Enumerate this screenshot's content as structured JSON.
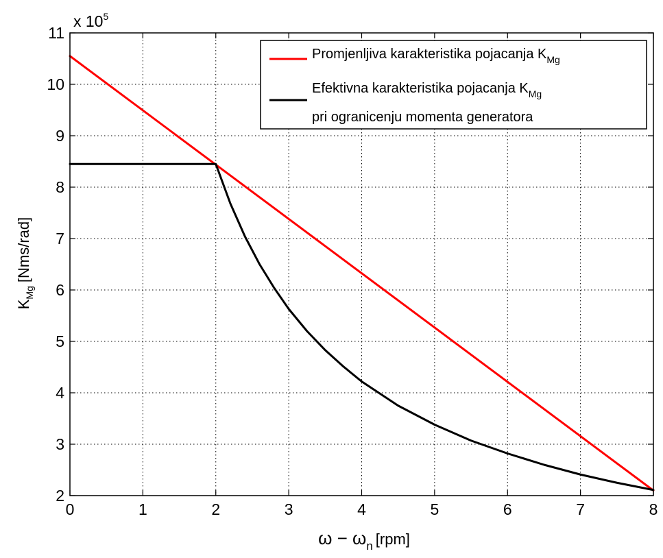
{
  "chart_data": {
    "type": "line",
    "title": "",
    "xlabel": "ω − ω",
    "xlabel_subscript": "n",
    "xlabel_unit": "[rpm]",
    "ylabel": "K",
    "ylabel_subscript": "Mg",
    "ylabel_unit": "[Nms/rad]",
    "y_multiplier": "x 10",
    "y_multiplier_exponent": "5",
    "xlim": [
      0,
      8
    ],
    "ylim": [
      2,
      11
    ],
    "x_ticks": [
      "0",
      "1",
      "2",
      "3",
      "4",
      "5",
      "6",
      "7",
      "8"
    ],
    "y_ticks": [
      "2",
      "3",
      "4",
      "5",
      "6",
      "7",
      "8",
      "9",
      "10",
      "11"
    ],
    "grid": true,
    "legend_location": "top-right",
    "legend": {
      "entry1_text": "Promjenljiva karakteristika pojacanja K",
      "entry1_sub": "Mg",
      "entry2_line1": "Efektivna karakteristika pojacanja K",
      "entry2_sub": "Mg",
      "entry2_line2": "pri ogranicenju momenta generatora"
    },
    "series": [
      {
        "color": "#ff0000",
        "x": [
          0,
          8
        ],
        "y": [
          10.55,
          2.1
        ]
      },
      {
        "color": "#000000",
        "x": [
          0,
          2.0,
          2.2,
          2.4,
          2.6,
          2.8,
          3.0,
          3.25,
          3.5,
          3.75,
          4.0,
          4.5,
          5.0,
          5.5,
          6.0,
          6.5,
          7.0,
          7.5,
          8.0
        ],
        "y": [
          8.45,
          8.45,
          7.68,
          7.04,
          6.5,
          6.04,
          5.63,
          5.2,
          4.83,
          4.51,
          4.22,
          3.75,
          3.38,
          3.07,
          2.82,
          2.6,
          2.41,
          2.25,
          2.11
        ]
      }
    ]
  }
}
